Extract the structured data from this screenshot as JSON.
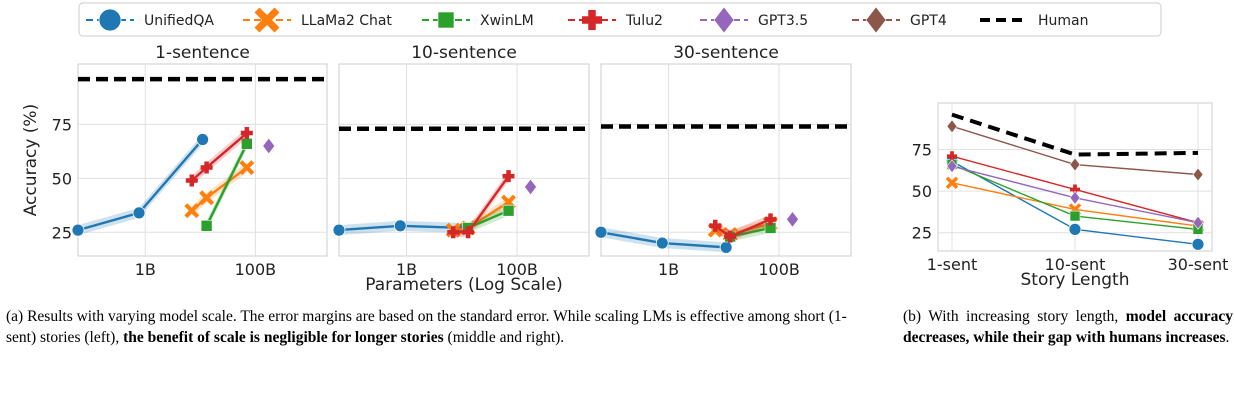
{
  "legend": [
    {
      "name": "UnifiedQA",
      "color": "#1f77b4",
      "marker": "circle",
      "dash": "dashed"
    },
    {
      "name": "LLaMa2 Chat",
      "color": "#ff7f0e",
      "marker": "x",
      "dash": "dashed"
    },
    {
      "name": "XwinLM",
      "color": "#2ca02c",
      "marker": "square",
      "dash": "dashed"
    },
    {
      "name": "Tulu2",
      "color": "#d62728",
      "marker": "plus",
      "dash": "dashed"
    },
    {
      "name": "GPT3.5",
      "color": "#9467bd",
      "marker": "diamond",
      "dash": "dashed"
    },
    {
      "name": "GPT4",
      "color": "#8c564b",
      "marker": "diamond",
      "dash": "dashed"
    },
    {
      "name": "Human",
      "color": "#000000",
      "marker": "none",
      "dash": "thick-dashed"
    }
  ],
  "chart_data": [
    {
      "type": "line",
      "title": "1-sentence",
      "xscale": "log",
      "xlim": [
        0.06,
        2000
      ],
      "ylim": [
        14,
        103
      ],
      "xticks": [
        {
          "value": 1,
          "label": "1B"
        },
        {
          "value": 100,
          "label": "100B"
        }
      ],
      "yticks": [
        {
          "value": 25,
          "label": "25"
        },
        {
          "value": 50,
          "label": "50"
        },
        {
          "value": 75,
          "label": "75"
        }
      ],
      "ylabel": "Accuracy (%)",
      "human": 96,
      "series": [
        {
          "name": "UnifiedQA",
          "x": [
            0.06,
            0.77,
            11
          ],
          "y": [
            26,
            34,
            68
          ]
        },
        {
          "name": "LLaMa2 Chat",
          "x": [
            7,
            13,
            70
          ],
          "y": [
            35,
            41,
            55
          ]
        },
        {
          "name": "XwinLM",
          "x": [
            13,
            70
          ],
          "y": [
            28,
            66
          ]
        },
        {
          "name": "Tulu2",
          "x": [
            7,
            13,
            70
          ],
          "y": [
            49,
            55,
            71
          ]
        },
        {
          "name": "GPT3.5",
          "x": [
            175
          ],
          "y": [
            65
          ]
        }
      ]
    },
    {
      "type": "line",
      "title": "10-sentence",
      "xscale": "log",
      "xlim": [
        0.06,
        2000
      ],
      "ylim": [
        14,
        103
      ],
      "xticks": [
        {
          "value": 1,
          "label": "1B"
        },
        {
          "value": 100,
          "label": "100B"
        }
      ],
      "yticks": [
        {
          "value": 25,
          "label": ""
        },
        {
          "value": 50,
          "label": ""
        },
        {
          "value": 75,
          "label": ""
        }
      ],
      "xlabel": "Parameters (Log Scale)",
      "human": 73,
      "series": [
        {
          "name": "UnifiedQA",
          "x": [
            0.06,
            0.77,
            11
          ],
          "y": [
            26,
            28,
            27
          ]
        },
        {
          "name": "LLaMa2 Chat",
          "x": [
            7,
            13,
            70
          ],
          "y": [
            26,
            27,
            39
          ]
        },
        {
          "name": "XwinLM",
          "x": [
            13,
            70
          ],
          "y": [
            27,
            35
          ]
        },
        {
          "name": "Tulu2",
          "x": [
            7,
            13,
            70
          ],
          "y": [
            25,
            25,
            51
          ]
        },
        {
          "name": "GPT3.5",
          "x": [
            175
          ],
          "y": [
            46
          ]
        }
      ]
    },
    {
      "type": "line",
      "title": "30-sentence",
      "xscale": "log",
      "xlim": [
        0.06,
        2000
      ],
      "ylim": [
        14,
        103
      ],
      "xticks": [
        {
          "value": 1,
          "label": "1B"
        },
        {
          "value": 100,
          "label": "100B"
        }
      ],
      "yticks": [
        {
          "value": 25,
          "label": ""
        },
        {
          "value": 50,
          "label": ""
        },
        {
          "value": 75,
          "label": ""
        }
      ],
      "human": 74,
      "series": [
        {
          "name": "UnifiedQA",
          "x": [
            0.06,
            0.77,
            11
          ],
          "y": [
            25,
            20,
            18
          ]
        },
        {
          "name": "LLaMa2 Chat",
          "x": [
            7,
            13,
            70
          ],
          "y": [
            26,
            24,
            29
          ]
        },
        {
          "name": "XwinLM",
          "x": [
            13,
            70
          ],
          "y": [
            23,
            27
          ]
        },
        {
          "name": "Tulu2",
          "x": [
            7,
            13,
            70
          ],
          "y": [
            28,
            23,
            31
          ]
        },
        {
          "name": "GPT3.5",
          "x": [
            175
          ],
          "y": [
            31
          ]
        }
      ]
    },
    {
      "type": "line",
      "title": "",
      "categories": [
        "1-sent",
        "10-sent",
        "30-sent"
      ],
      "ylim": [
        14,
        103
      ],
      "yticks": [
        {
          "value": 25,
          "label": "25"
        },
        {
          "value": 50,
          "label": "50"
        },
        {
          "value": 75,
          "label": "75"
        }
      ],
      "xlabel": "Story Length",
      "human": [
        96,
        72,
        73
      ],
      "series": [
        {
          "name": "UnifiedQA",
          "values": [
            68,
            27,
            18
          ]
        },
        {
          "name": "LLaMa2 Chat",
          "values": [
            55,
            39,
            29
          ]
        },
        {
          "name": "XwinLM",
          "values": [
            66,
            35,
            27
          ]
        },
        {
          "name": "Tulu2",
          "values": [
            71,
            51,
            31
          ]
        },
        {
          "name": "GPT3.5",
          "values": [
            65,
            46,
            31
          ]
        },
        {
          "name": "GPT4",
          "values": [
            89,
            66,
            60
          ]
        }
      ]
    }
  ],
  "captions": {
    "a": {
      "p1": "(a) Results with varying model scale. The error margins are based on the standard error. While scaling LMs is effective among short (1-sent) stories (left), ",
      "b1": "the benefit of scale is negligible for longer stories",
      "p2": " (middle and right)."
    },
    "b": {
      "p1": "(b) With increasing story length, ",
      "b1": "model accuracy decreases, while their gap with humans increases",
      "p2": "."
    }
  }
}
